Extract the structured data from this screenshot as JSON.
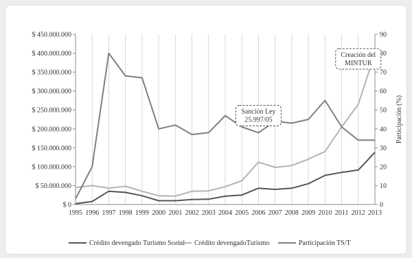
{
  "chart_data": {
    "type": "line",
    "title": "",
    "x": [
      "1995",
      "1996",
      "1997",
      "1998",
      "1999",
      "2000",
      "2001",
      "2002",
      "2003",
      "2004",
      "2005",
      "2006",
      "2007",
      "2008",
      "2009",
      "2010",
      "2011",
      "2012",
      "2013"
    ],
    "y_left": {
      "ylim": [
        0,
        450000000
      ],
      "ticks": [
        0,
        50000000,
        100000000,
        150000000,
        200000000,
        250000000,
        300000000,
        350000000,
        400000000,
        450000000
      ],
      "tick_labels": [
        "$ 0",
        "$ 50.000.000",
        "$ 100.000.000",
        "$ 150.000.000",
        "$ 200.000.000",
        "$ 250.000.000",
        "$ 300.000.000",
        "$ 350.000.000",
        "$ 400.000.000",
        "$ 450.000.000"
      ]
    },
    "y_right": {
      "label": "Participación (%)",
      "ylim": [
        0,
        90
      ],
      "ticks": [
        0,
        10,
        20,
        30,
        40,
        50,
        60,
        70,
        80,
        90
      ],
      "tick_labels": [
        "0",
        "10",
        "20",
        "30",
        "40",
        "50",
        "60",
        "70",
        "80",
        "90"
      ]
    },
    "series": [
      {
        "name": "Crédito devengado Turismo Social",
        "axis": "left",
        "color": "#555555",
        "values": [
          2000000,
          8000000,
          35000000,
          32000000,
          23000000,
          10000000,
          10000000,
          13000000,
          14000000,
          22000000,
          25000000,
          43000000,
          40000000,
          43000000,
          55000000,
          77000000,
          85000000,
          91000000,
          138000000
        ]
      },
      {
        "name": "Crédito devengadoTurismo",
        "axis": "left",
        "color": "#b3b3b3",
        "values": [
          45000000,
          50000000,
          43000000,
          48000000,
          35000000,
          23000000,
          22000000,
          35000000,
          36000000,
          47000000,
          63000000,
          112000000,
          98000000,
          103000000,
          120000000,
          140000000,
          205000000,
          265000000,
          400000000
        ]
      },
      {
        "name": "Participación TS/T",
        "axis": "right",
        "color": "#7f7f7f",
        "values": [
          3,
          20,
          80,
          68,
          67,
          40,
          42,
          37,
          38,
          47,
          41,
          38,
          44,
          43,
          45,
          55,
          41,
          34,
          34
        ]
      }
    ],
    "grid": "vertical",
    "legend_position": "bottom",
    "annotations": [
      {
        "lines": [
          "Sanción Ley",
          "25.997/05"
        ],
        "x": "2006",
        "y_right": 47
      },
      {
        "lines": [
          "Creación del",
          "MINTUR"
        ],
        "x": "2012",
        "y_right": 77
      }
    ]
  }
}
